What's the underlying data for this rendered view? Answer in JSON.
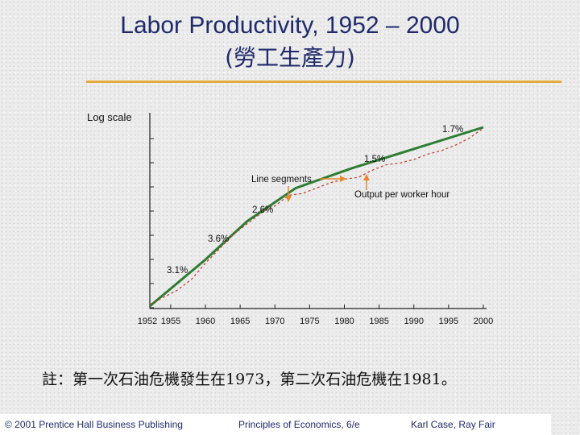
{
  "slide": {
    "title_line1": "Labor Productivity, 1952 – 2000",
    "title_line2": "(勞工生產力)",
    "note": "註：第一次石油危機發生在1973，第二次石油危機在1981。",
    "footer_left": "© 2001 Prentice Hall Business Publishing",
    "footer_center": "Principles of Economics, 6/e",
    "footer_right": "Karl Case, Ray Fair"
  },
  "colors": {
    "title": "#1f2a6b",
    "accent_rule": "#e7a93a",
    "segment_line": "#2e7d32",
    "output_line": "#c0392b",
    "arrow": "#e8872b"
  },
  "chart_data": {
    "type": "line",
    "ylabel": "Log scale",
    "y_scale": "log",
    "x_ticks": [
      "1952",
      "1955",
      "1960",
      "1965",
      "1970",
      "1975",
      "1980",
      "1985",
      "1990",
      "1995",
      "2000"
    ],
    "xlim": [
      1952,
      2000
    ],
    "series": [
      {
        "name": "Line segments",
        "style": "solid",
        "x": [
          1952,
          1960,
          1966,
          1973,
          1981,
          2000
        ],
        "y": [
          0.0,
          0.26,
          0.475,
          0.66,
          0.77,
          1.0
        ]
      },
      {
        "name": "Output per worker hour",
        "style": "dashed",
        "x": [
          1952,
          1954,
          1956,
          1958,
          1960,
          1962,
          1964,
          1966,
          1968,
          1970,
          1972,
          1974,
          1976,
          1978,
          1980,
          1982,
          1984,
          1986,
          1988,
          1990,
          1992,
          1994,
          1996,
          1998,
          2000
        ],
        "y": [
          0.01,
          0.05,
          0.09,
          0.15,
          0.24,
          0.32,
          0.4,
          0.46,
          0.52,
          0.56,
          0.62,
          0.63,
          0.66,
          0.69,
          0.71,
          0.72,
          0.76,
          0.79,
          0.8,
          0.82,
          0.85,
          0.87,
          0.9,
          0.94,
          0.995
        ]
      }
    ],
    "annotations": [
      {
        "text": "3.1%",
        "x": 1955
      },
      {
        "text": "3.6%",
        "x": 1962
      },
      {
        "text": "2.6%",
        "x": 1969
      },
      {
        "text": "1.5%",
        "x": 1984
      },
      {
        "text": "1.7%",
        "x": 1995
      },
      {
        "text": "Line segments",
        "target": "Line segments"
      },
      {
        "text": "Output per worker hour",
        "target": "Output per worker hour"
      }
    ]
  }
}
